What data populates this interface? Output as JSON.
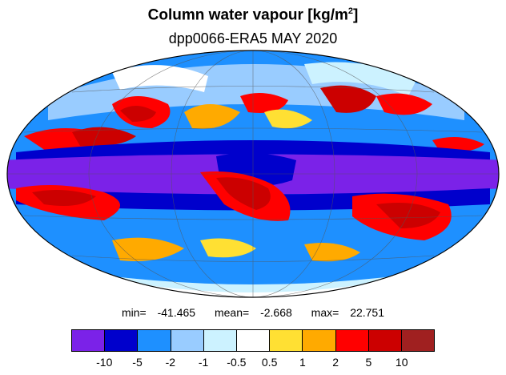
{
  "title": {
    "main": "Column water vapour [kg/m",
    "sup": "2",
    "close": "]"
  },
  "subtitle": "dpp0066-ERA5  MAY 2020",
  "stats": {
    "min_label": "min=",
    "min": "-41.465",
    "mean_label": "mean=",
    "mean": "-2.668",
    "max_label": "max=",
    "max": "22.751"
  },
  "colorbar": {
    "colors": [
      "#7b22e8",
      "#0000cc",
      "#1e90ff",
      "#99ccff",
      "#ccf2ff",
      "#ffffff",
      "#ffe033",
      "#ffaa00",
      "#ff0000",
      "#cc0000",
      "#a02020"
    ],
    "labels": [
      "-10",
      "-5",
      "-2",
      "-1",
      "-0.5",
      "0.5",
      "1",
      "2",
      "5",
      "10"
    ]
  },
  "map": {
    "projection": "mollweide",
    "field": "Column water vapour difference"
  }
}
